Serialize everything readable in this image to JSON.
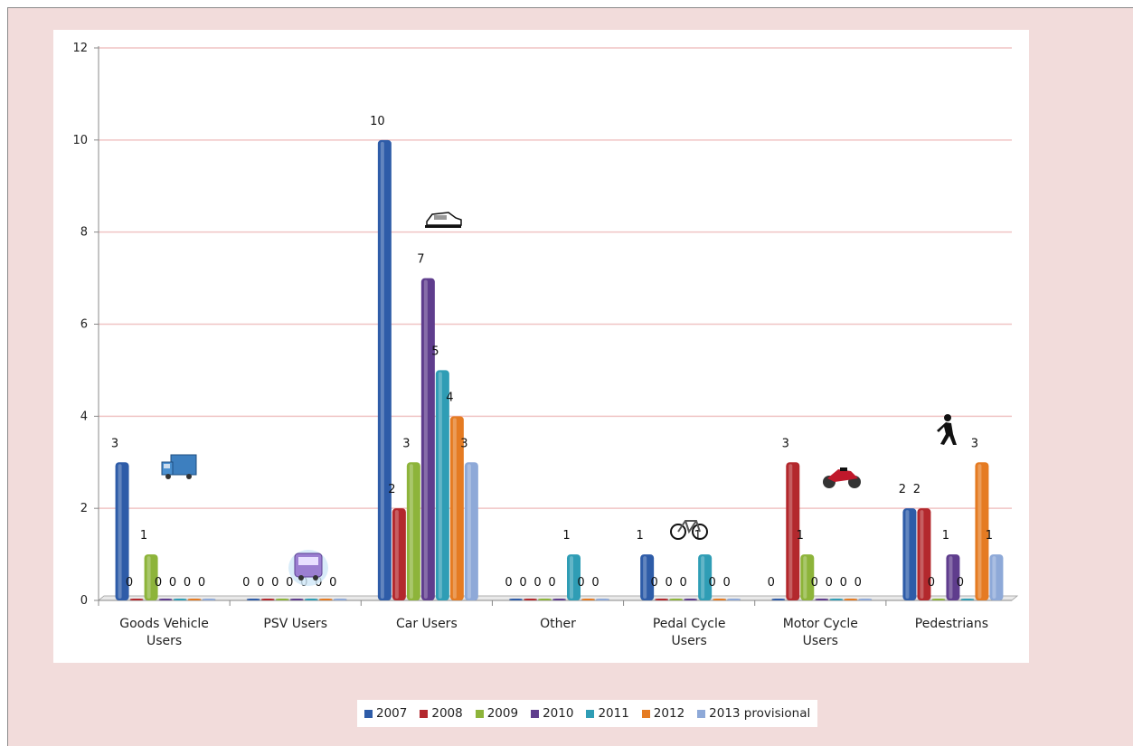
{
  "chart_data": {
    "type": "bar",
    "categories": [
      [
        "Goods Vehicle",
        "Users"
      ],
      [
        "PSV Users"
      ],
      [
        "Car Users"
      ],
      [
        "Other"
      ],
      [
        "Pedal Cycle",
        "Users"
      ],
      [
        "Motor Cycle",
        "Users"
      ],
      [
        "Pedestrians"
      ]
    ],
    "series": [
      {
        "name": "2007",
        "color": "#2e5ca8",
        "values": [
          3,
          0,
          10,
          0,
          1,
          0,
          2
        ]
      },
      {
        "name": "2008",
        "color": "#b3282d",
        "values": [
          0,
          0,
          2,
          0,
          0,
          3,
          2
        ]
      },
      {
        "name": "2009",
        "color": "#8db43a",
        "values": [
          1,
          0,
          3,
          0,
          0,
          1,
          0
        ]
      },
      {
        "name": "2010",
        "color": "#5f3d8d",
        "values": [
          0,
          0,
          7,
          0,
          0,
          0,
          1
        ]
      },
      {
        "name": "2011",
        "color": "#2f9db5",
        "values": [
          0,
          0,
          5,
          1,
          1,
          0,
          0
        ]
      },
      {
        "name": "2012",
        "color": "#e57b22",
        "values": [
          0,
          0,
          4,
          0,
          0,
          0,
          3
        ]
      },
      {
        "name": "2013 provisional",
        "color": "#8ea9d8",
        "values": [
          0,
          0,
          3,
          0,
          0,
          0,
          1
        ]
      }
    ],
    "ylim": [
      0,
      12
    ],
    "yticks": [
      0,
      2,
      4,
      6,
      8,
      10,
      12
    ],
    "grid": true,
    "legend": "bottom",
    "icons": [
      "truck-icon",
      "bus-icon",
      "car-icon",
      "",
      "bicycle-icon",
      "motorcycle-icon",
      "pedestrian-icon"
    ]
  }
}
